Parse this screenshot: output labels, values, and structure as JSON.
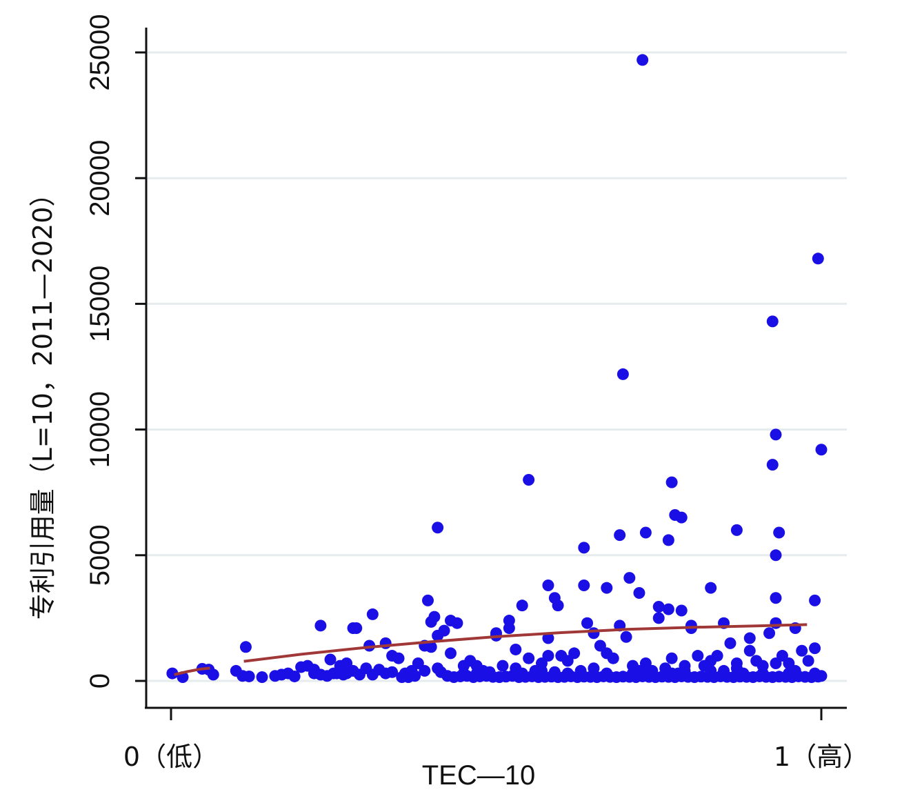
{
  "chart_data": {
    "type": "scatter",
    "title": "",
    "xlabel": "TEC—10",
    "ylabel": "专利引用量（L=10，2011—2020）",
    "xlim": [
      0,
      1
    ],
    "ylim": [
      -1000,
      26500
    ],
    "grid": "horizontal",
    "x_tick_labels": [
      {
        "x": 0,
        "label": "0（低）"
      },
      {
        "x": 1,
        "label": "1（高）"
      }
    ],
    "y_ticks": [
      0,
      5000,
      10000,
      15000,
      20000,
      25000
    ],
    "colors": {
      "points": "#1a10e6",
      "fit_line": "#a03838",
      "grid": "#e6ebee"
    },
    "series": [
      {
        "type": "scatter",
        "points": [
          [
            0.002,
            300
          ],
          [
            0.018,
            150
          ],
          [
            0.048,
            480
          ],
          [
            0.058,
            450
          ],
          [
            0.065,
            250
          ],
          [
            0.1,
            400
          ],
          [
            0.11,
            200
          ],
          [
            0.115,
            1350
          ],
          [
            0.12,
            180
          ],
          [
            0.14,
            150
          ],
          [
            0.16,
            200
          ],
          [
            0.17,
            250
          ],
          [
            0.18,
            300
          ],
          [
            0.19,
            180
          ],
          [
            0.2,
            550
          ],
          [
            0.21,
            600
          ],
          [
            0.22,
            300
          ],
          [
            0.23,
            250
          ],
          [
            0.24,
            200
          ],
          [
            0.245,
            850
          ],
          [
            0.25,
            300
          ],
          [
            0.255,
            300
          ],
          [
            0.26,
            600
          ],
          [
            0.265,
            250
          ],
          [
            0.27,
            700
          ],
          [
            0.28,
            400
          ],
          [
            0.285,
            2100
          ],
          [
            0.29,
            250
          ],
          [
            0.3,
            500
          ],
          [
            0.305,
            1400
          ],
          [
            0.31,
            250
          ],
          [
            0.32,
            450
          ],
          [
            0.33,
            1500
          ],
          [
            0.34,
            350
          ],
          [
            0.35,
            900
          ],
          [
            0.36,
            300
          ],
          [
            0.37,
            250
          ],
          [
            0.38,
            700
          ],
          [
            0.39,
            400
          ],
          [
            0.395,
            3200
          ],
          [
            0.4,
            1350
          ],
          [
            0.405,
            2550
          ],
          [
            0.41,
            1800
          ],
          [
            0.415,
            350
          ],
          [
            0.42,
            2000
          ],
          [
            0.43,
            1100
          ],
          [
            0.44,
            2300
          ],
          [
            0.45,
            300
          ],
          [
            0.46,
            800
          ],
          [
            0.47,
            600
          ],
          [
            0.48,
            400
          ],
          [
            0.49,
            350
          ],
          [
            0.5,
            1800
          ],
          [
            0.51,
            600
          ],
          [
            0.52,
            2100
          ],
          [
            0.53,
            1250
          ],
          [
            0.54,
            300
          ],
          [
            0.55,
            900
          ],
          [
            0.56,
            400
          ],
          [
            0.57,
            700
          ],
          [
            0.58,
            1000
          ],
          [
            0.59,
            350
          ],
          [
            0.6,
            1000
          ],
          [
            0.61,
            800
          ],
          [
            0.62,
            1100
          ],
          [
            0.63,
            400
          ],
          [
            0.64,
            2300
          ],
          [
            0.65,
            1900
          ],
          [
            0.66,
            1400
          ],
          [
            0.67,
            1100
          ],
          [
            0.68,
            900
          ],
          [
            0.69,
            2200
          ],
          [
            0.7,
            1750
          ],
          [
            0.71,
            600
          ],
          [
            0.72,
            400
          ],
          [
            0.73,
            700
          ],
          [
            0.74,
            400
          ],
          [
            0.75,
            2500
          ],
          [
            0.76,
            500
          ],
          [
            0.77,
            900
          ],
          [
            0.78,
            300
          ],
          [
            0.79,
            600
          ],
          [
            0.8,
            2100
          ],
          [
            0.81,
            1000
          ],
          [
            0.82,
            600
          ],
          [
            0.83,
            800
          ],
          [
            0.84,
            1000
          ],
          [
            0.85,
            400
          ],
          [
            0.86,
            1500
          ],
          [
            0.87,
            700
          ],
          [
            0.88,
            300
          ],
          [
            0.89,
            1200
          ],
          [
            0.9,
            800
          ],
          [
            0.91,
            600
          ],
          [
            0.92,
            1900
          ],
          [
            0.93,
            700
          ],
          [
            0.94,
            1000
          ],
          [
            0.95,
            700
          ],
          [
            0.96,
            400
          ],
          [
            0.97,
            1200
          ],
          [
            0.98,
            800
          ],
          [
            0.99,
            300
          ],
          [
            0.355,
            150
          ],
          [
            0.365,
            150
          ],
          [
            0.375,
            200
          ],
          [
            0.425,
            200
          ],
          [
            0.435,
            150
          ],
          [
            0.445,
            180
          ],
          [
            0.455,
            200
          ],
          [
            0.465,
            150
          ],
          [
            0.475,
            180
          ],
          [
            0.485,
            200
          ],
          [
            0.495,
            160
          ],
          [
            0.505,
            150
          ],
          [
            0.515,
            170
          ],
          [
            0.525,
            200
          ],
          [
            0.535,
            150
          ],
          [
            0.545,
            160
          ],
          [
            0.555,
            180
          ],
          [
            0.565,
            150
          ],
          [
            0.575,
            160
          ],
          [
            0.585,
            170
          ],
          [
            0.595,
            150
          ],
          [
            0.605,
            160
          ],
          [
            0.615,
            180
          ],
          [
            0.625,
            150
          ],
          [
            0.635,
            170
          ],
          [
            0.645,
            160
          ],
          [
            0.655,
            150
          ],
          [
            0.665,
            180
          ],
          [
            0.675,
            160
          ],
          [
            0.685,
            150
          ],
          [
            0.695,
            170
          ],
          [
            0.705,
            160
          ],
          [
            0.715,
            150
          ],
          [
            0.725,
            180
          ],
          [
            0.735,
            160
          ],
          [
            0.745,
            150
          ],
          [
            0.755,
            170
          ],
          [
            0.765,
            160
          ],
          [
            0.775,
            150
          ],
          [
            0.785,
            180
          ],
          [
            0.795,
            160
          ],
          [
            0.805,
            150
          ],
          [
            0.815,
            170
          ],
          [
            0.825,
            160
          ],
          [
            0.835,
            150
          ],
          [
            0.845,
            180
          ],
          [
            0.855,
            160
          ],
          [
            0.865,
            150
          ],
          [
            0.875,
            170
          ],
          [
            0.885,
            160
          ],
          [
            0.895,
            150
          ],
          [
            0.905,
            180
          ],
          [
            0.915,
            160
          ],
          [
            0.925,
            150
          ],
          [
            0.935,
            170
          ],
          [
            0.945,
            160
          ],
          [
            0.955,
            150
          ],
          [
            0.965,
            180
          ],
          [
            0.975,
            160
          ],
          [
            0.985,
            150
          ],
          [
            0.995,
            170
          ],
          [
            0.22,
            450
          ],
          [
            0.27,
            300
          ],
          [
            0.33,
            300
          ],
          [
            0.37,
            400
          ],
          [
            0.41,
            500
          ],
          [
            0.45,
            600
          ],
          [
            0.47,
            300
          ],
          [
            0.53,
            500
          ],
          [
            0.57,
            400
          ],
          [
            0.61,
            300
          ],
          [
            0.65,
            500
          ],
          [
            0.67,
            300
          ],
          [
            0.71,
            300
          ],
          [
            0.73,
            500
          ],
          [
            0.77,
            300
          ],
          [
            0.79,
            400
          ],
          [
            0.83,
            400
          ],
          [
            0.87,
            500
          ],
          [
            0.91,
            300
          ],
          [
            0.95,
            300
          ],
          [
            0.23,
            2200
          ],
          [
            0.28,
            2100
          ],
          [
            0.31,
            2650
          ],
          [
            0.34,
            1000
          ],
          [
            0.39,
            1400
          ],
          [
            0.4,
            2350
          ],
          [
            0.41,
            6100
          ],
          [
            0.43,
            2400
          ],
          [
            0.5,
            1900
          ],
          [
            0.52,
            2400
          ],
          [
            0.54,
            3000
          ],
          [
            0.55,
            8000
          ],
          [
            0.58,
            1700
          ],
          [
            0.58,
            3800
          ],
          [
            0.59,
            3300
          ],
          [
            0.595,
            3000
          ],
          [
            0.635,
            5300
          ],
          [
            0.635,
            3800
          ],
          [
            0.67,
            3700
          ],
          [
            0.69,
            5800
          ],
          [
            0.695,
            12200
          ],
          [
            0.705,
            4100
          ],
          [
            0.72,
            3500
          ],
          [
            0.73,
            5900
          ],
          [
            0.725,
            24700
          ],
          [
            0.75,
            2950
          ],
          [
            0.765,
            2850
          ],
          [
            0.765,
            5600
          ],
          [
            0.77,
            7900
          ],
          [
            0.775,
            6600
          ],
          [
            0.785,
            6500
          ],
          [
            0.785,
            2800
          ],
          [
            0.8,
            2200
          ],
          [
            0.83,
            3700
          ],
          [
            0.85,
            2300
          ],
          [
            0.87,
            6000
          ],
          [
            0.89,
            1700
          ],
          [
            0.925,
            14300
          ],
          [
            0.925,
            8600
          ],
          [
            0.93,
            9800
          ],
          [
            0.93,
            5000
          ],
          [
            0.93,
            3300
          ],
          [
            0.935,
            5900
          ],
          [
            0.93,
            2300
          ],
          [
            0.96,
            2100
          ],
          [
            0.99,
            3200
          ],
          [
            0.995,
            16800
          ],
          [
            1.0,
            9200
          ],
          [
            1.0,
            200
          ],
          [
            0.99,
            1300
          ]
        ]
      },
      {
        "type": "line",
        "name": "",
        "points": [
          [
            0.112,
            780
          ],
          [
            0.2,
            1060
          ],
          [
            0.3,
            1330
          ],
          [
            0.4,
            1560
          ],
          [
            0.5,
            1760
          ],
          [
            0.6,
            1920
          ],
          [
            0.7,
            2050
          ],
          [
            0.8,
            2130
          ],
          [
            0.9,
            2190
          ],
          [
            0.978,
            2240
          ]
        ]
      },
      {
        "type": "line",
        "name": "",
        "points": [
          [
            0.005,
            250
          ],
          [
            0.025,
            370
          ],
          [
            0.045,
            470
          ],
          [
            0.06,
            510
          ]
        ]
      }
    ]
  }
}
